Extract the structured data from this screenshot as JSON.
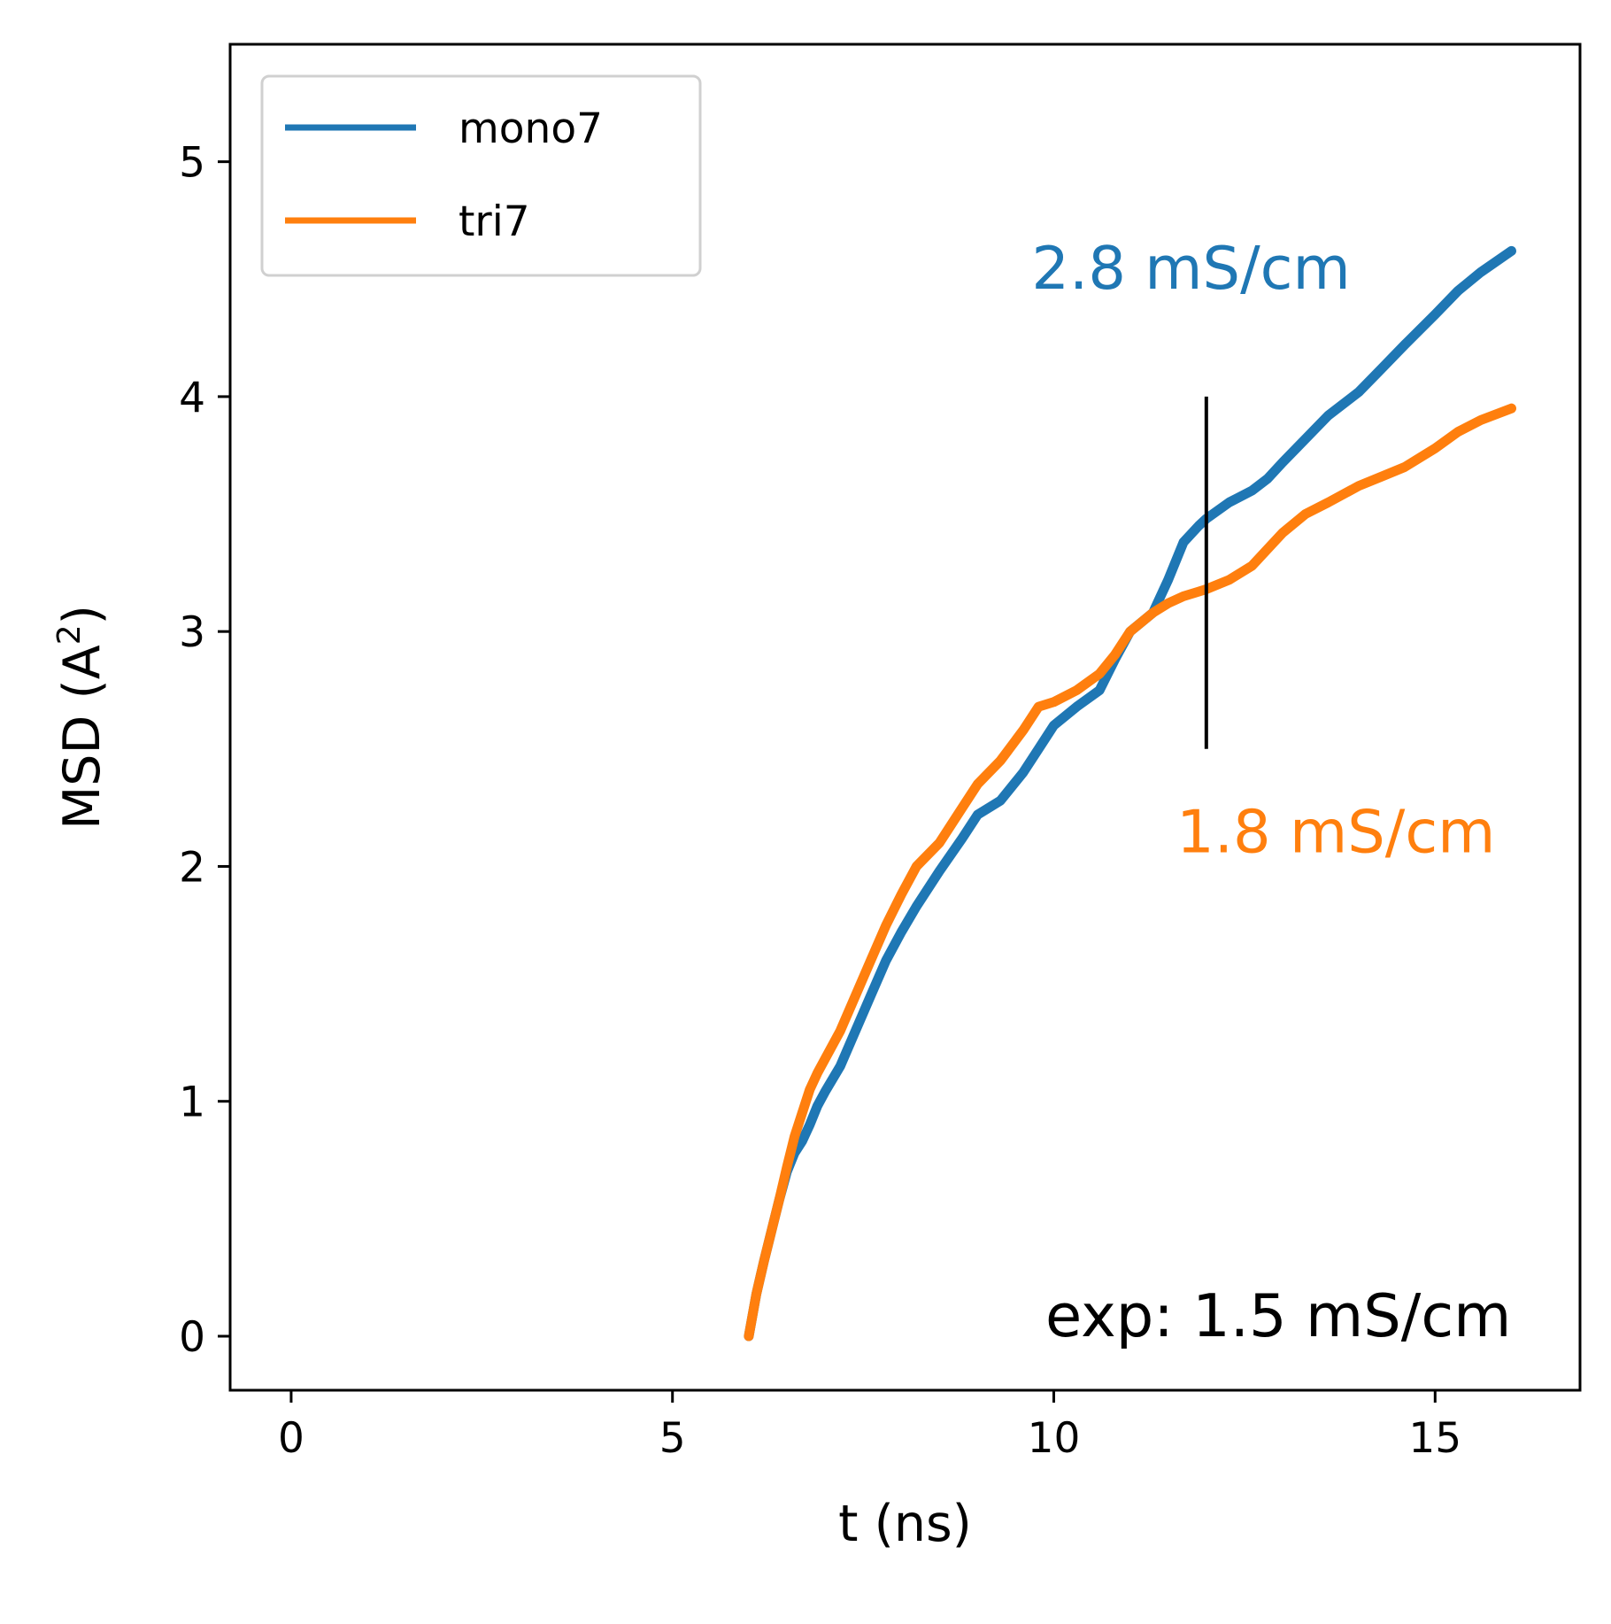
{
  "chart_data": {
    "type": "line",
    "xlabel": "t (ns)",
    "ylabel_main": "MSD (A",
    "ylabel_sup": "2",
    "ylabel_close": ")",
    "xlim": [
      -0.8,
      16.9
    ],
    "ylim": [
      -0.23,
      5.5
    ],
    "xticks": [
      {
        "value": 0,
        "label": "0"
      },
      {
        "value": 5,
        "label": "5"
      },
      {
        "value": 10,
        "label": "10"
      },
      {
        "value": 15,
        "label": "15"
      }
    ],
    "yticks": [
      {
        "value": 0,
        "label": "0"
      },
      {
        "value": 1,
        "label": "1"
      },
      {
        "value": 2,
        "label": "2"
      },
      {
        "value": 3,
        "label": "3"
      },
      {
        "value": 4,
        "label": "4"
      },
      {
        "value": 5,
        "label": "5"
      }
    ],
    "grid": false,
    "legend_position": "top-left",
    "series": [
      {
        "name": "mono7",
        "color": "#1f77b4",
        "x": [
          6.0,
          6.1,
          6.2,
          6.3,
          6.4,
          6.5,
          6.6,
          6.7,
          6.8,
          6.9,
          7.0,
          7.2,
          7.4,
          7.6,
          7.8,
          8.0,
          8.2,
          8.5,
          8.8,
          9.0,
          9.3,
          9.6,
          9.8,
          10.0,
          10.3,
          10.6,
          10.8,
          11.0,
          11.3,
          11.5,
          11.7,
          11.9,
          12.0,
          12.3,
          12.6,
          12.8,
          13.0,
          13.3,
          13.6,
          14.0,
          14.3,
          14.6,
          15.0,
          15.3,
          15.6,
          16.0
        ],
        "y": [
          0.0,
          0.18,
          0.32,
          0.45,
          0.58,
          0.7,
          0.78,
          0.83,
          0.9,
          0.98,
          1.04,
          1.15,
          1.3,
          1.45,
          1.6,
          1.72,
          1.83,
          1.98,
          2.12,
          2.22,
          2.28,
          2.4,
          2.5,
          2.6,
          2.68,
          2.75,
          2.88,
          3.0,
          3.08,
          3.22,
          3.38,
          3.45,
          3.48,
          3.55,
          3.6,
          3.65,
          3.72,
          3.82,
          3.92,
          4.02,
          4.12,
          4.22,
          4.35,
          4.45,
          4.53,
          4.62
        ]
      },
      {
        "name": "tri7",
        "color": "#ff7f0e",
        "x": [
          6.0,
          6.1,
          6.2,
          6.3,
          6.4,
          6.5,
          6.6,
          6.7,
          6.8,
          6.9,
          7.0,
          7.2,
          7.4,
          7.6,
          7.8,
          8.0,
          8.2,
          8.5,
          8.8,
          9.0,
          9.3,
          9.6,
          9.8,
          10.0,
          10.3,
          10.6,
          10.8,
          11.0,
          11.3,
          11.5,
          11.7,
          11.9,
          12.0,
          12.3,
          12.6,
          12.8,
          13.0,
          13.3,
          13.6,
          14.0,
          14.3,
          14.6,
          15.0,
          15.3,
          15.6,
          16.0
        ],
        "y": [
          0.0,
          0.18,
          0.32,
          0.45,
          0.58,
          0.72,
          0.85,
          0.95,
          1.05,
          1.12,
          1.18,
          1.3,
          1.45,
          1.6,
          1.75,
          1.88,
          2.0,
          2.1,
          2.25,
          2.35,
          2.45,
          2.58,
          2.68,
          2.7,
          2.75,
          2.82,
          2.9,
          3.0,
          3.08,
          3.12,
          3.15,
          3.17,
          3.18,
          3.22,
          3.28,
          3.35,
          3.42,
          3.5,
          3.55,
          3.62,
          3.66,
          3.7,
          3.78,
          3.85,
          3.9,
          3.95
        ]
      }
    ],
    "vline": {
      "x": 12.0,
      "y_from": 2.5,
      "y_to": 4.0,
      "color": "#000000"
    },
    "annotations": [
      {
        "text": "2.8 mS/cm",
        "color": "#1f77b4",
        "x": 11.8,
        "y": 4.46,
        "anchor": "middle"
      },
      {
        "text": "1.8 mS/cm",
        "color": "#ff7f0e",
        "x": 13.7,
        "y": 2.06,
        "anchor": "middle"
      },
      {
        "text": "exp: 1.5 mS/cm",
        "color": "#000000",
        "x": 16.0,
        "y": 0.0,
        "anchor": "end"
      }
    ]
  }
}
